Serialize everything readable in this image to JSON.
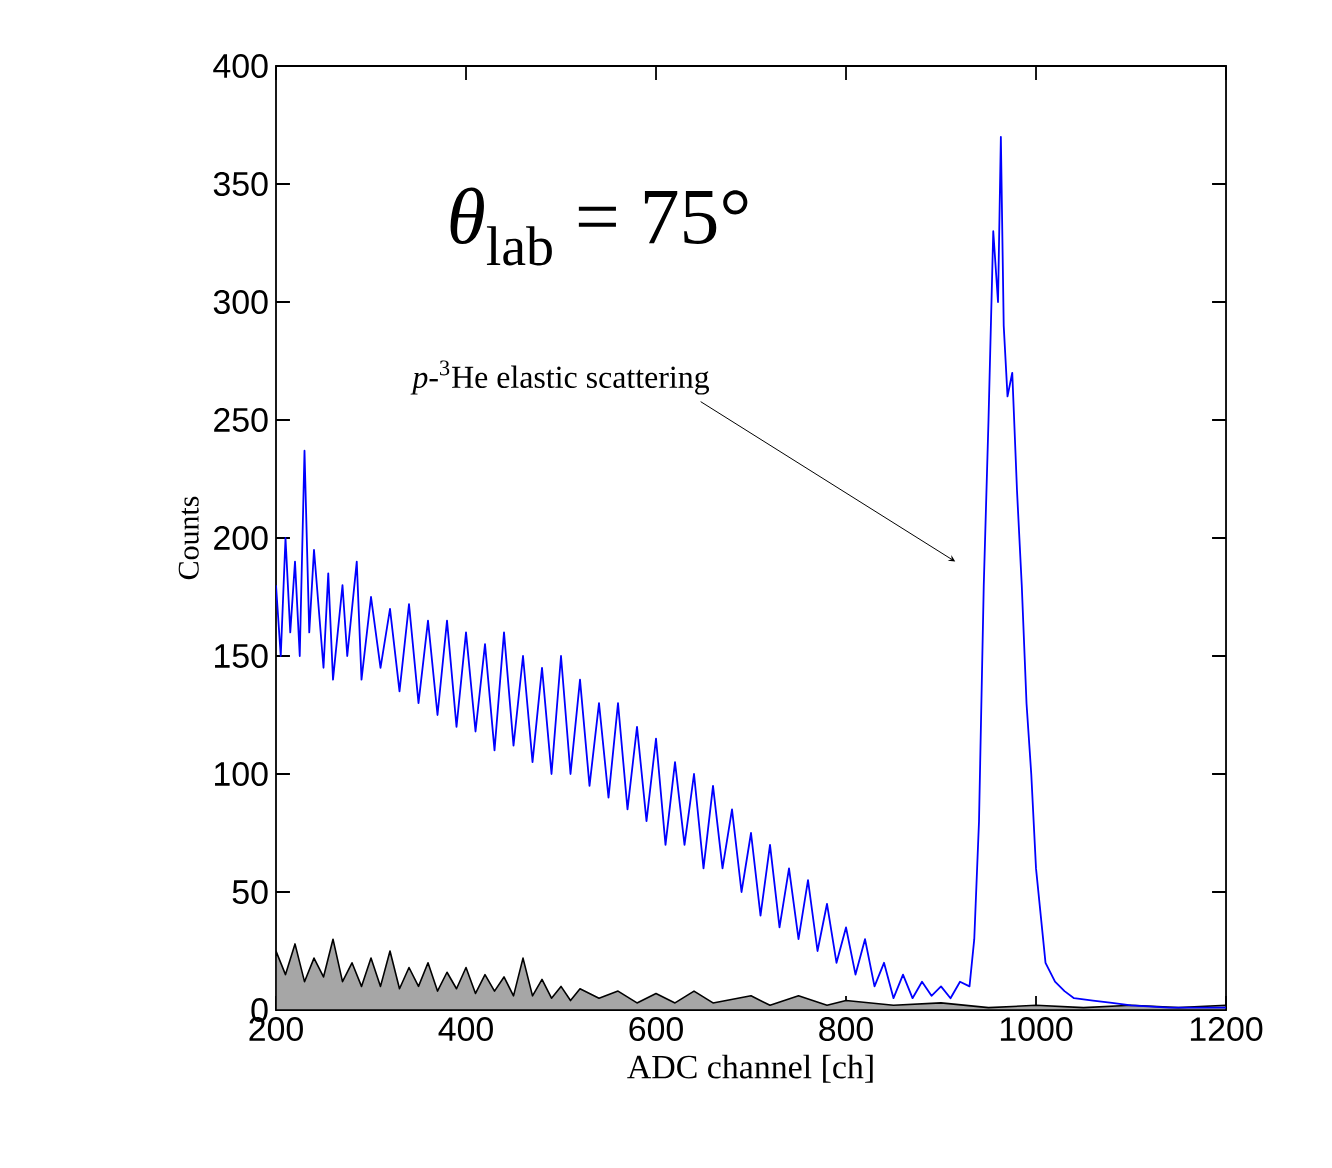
{
  "chart_data": {
    "type": "line",
    "xlabel": "ADC channel [ch]",
    "ylabel": "Counts",
    "xlim": [
      200,
      1200
    ],
    "xticks": [
      200,
      400,
      600,
      800,
      1000,
      1200
    ],
    "ylim": [
      0,
      400
    ],
    "yticks": [
      0,
      50,
      100,
      150,
      200,
      250,
      300,
      350,
      400
    ],
    "series": [
      {
        "color": "#0000ff",
        "x": [
          200,
          205,
          210,
          215,
          220,
          225,
          230,
          235,
          240,
          250,
          255,
          260,
          270,
          275,
          285,
          290,
          300,
          310,
          320,
          330,
          340,
          350,
          360,
          370,
          380,
          390,
          400,
          410,
          420,
          430,
          440,
          450,
          460,
          470,
          480,
          490,
          500,
          510,
          520,
          530,
          540,
          550,
          560,
          570,
          580,
          590,
          600,
          610,
          620,
          630,
          640,
          650,
          660,
          670,
          680,
          690,
          700,
          710,
          720,
          730,
          740,
          750,
          760,
          770,
          780,
          790,
          800,
          810,
          820,
          830,
          840,
          850,
          860,
          870,
          880,
          890,
          900,
          910,
          920,
          930,
          935,
          940,
          945,
          950,
          955,
          960,
          963,
          966,
          970,
          975,
          980,
          985,
          990,
          995,
          1000,
          1005,
          1010,
          1020,
          1030,
          1040,
          1060,
          1080,
          1100,
          1140,
          1200
        ],
        "values": [
          180,
          150,
          200,
          160,
          190,
          150,
          237,
          160,
          195,
          145,
          185,
          140,
          180,
          150,
          190,
          140,
          175,
          145,
          170,
          135,
          172,
          130,
          165,
          125,
          165,
          120,
          160,
          118,
          155,
          110,
          160,
          112,
          150,
          105,
          145,
          100,
          150,
          100,
          140,
          95,
          130,
          90,
          130,
          85,
          120,
          80,
          115,
          70,
          105,
          70,
          100,
          60,
          95,
          60,
          85,
          50,
          75,
          40,
          70,
          35,
          60,
          30,
          55,
          25,
          45,
          20,
          35,
          15,
          30,
          10,
          20,
          5,
          15,
          5,
          12,
          6,
          10,
          5,
          12,
          10,
          30,
          80,
          180,
          250,
          330,
          300,
          370,
          290,
          260,
          270,
          220,
          180,
          130,
          100,
          60,
          40,
          20,
          12,
          8,
          5,
          4,
          3,
          2,
          1,
          1
        ]
      },
      {
        "type": "area",
        "color": "#000000",
        "x": [
          200,
          210,
          220,
          230,
          240,
          250,
          260,
          270,
          280,
          290,
          300,
          310,
          320,
          330,
          340,
          350,
          360,
          370,
          380,
          390,
          400,
          410,
          420,
          430,
          440,
          450,
          460,
          470,
          480,
          490,
          500,
          510,
          520,
          540,
          560,
          580,
          600,
          620,
          640,
          660,
          700,
          720,
          750,
          780,
          800,
          850,
          900,
          950,
          1000,
          1050,
          1100,
          1150,
          1200
        ],
        "values": [
          25,
          15,
          28,
          12,
          22,
          14,
          30,
          12,
          20,
          10,
          22,
          10,
          25,
          9,
          18,
          10,
          20,
          8,
          16,
          9,
          18,
          7,
          15,
          8,
          14,
          6,
          22,
          6,
          13,
          5,
          10,
          4,
          9,
          5,
          8,
          3,
          7,
          3,
          8,
          3,
          6,
          2,
          6,
          2,
          4,
          2,
          3,
          1,
          2,
          1,
          2,
          1,
          2
        ]
      }
    ],
    "annotations": [
      "*θ*$_{lab}$ = 75°",
      {
        "text": "*p*-$^{3}$He elastic scattering",
        "x": 915,
        "y": 190
      }
    ]
  }
}
